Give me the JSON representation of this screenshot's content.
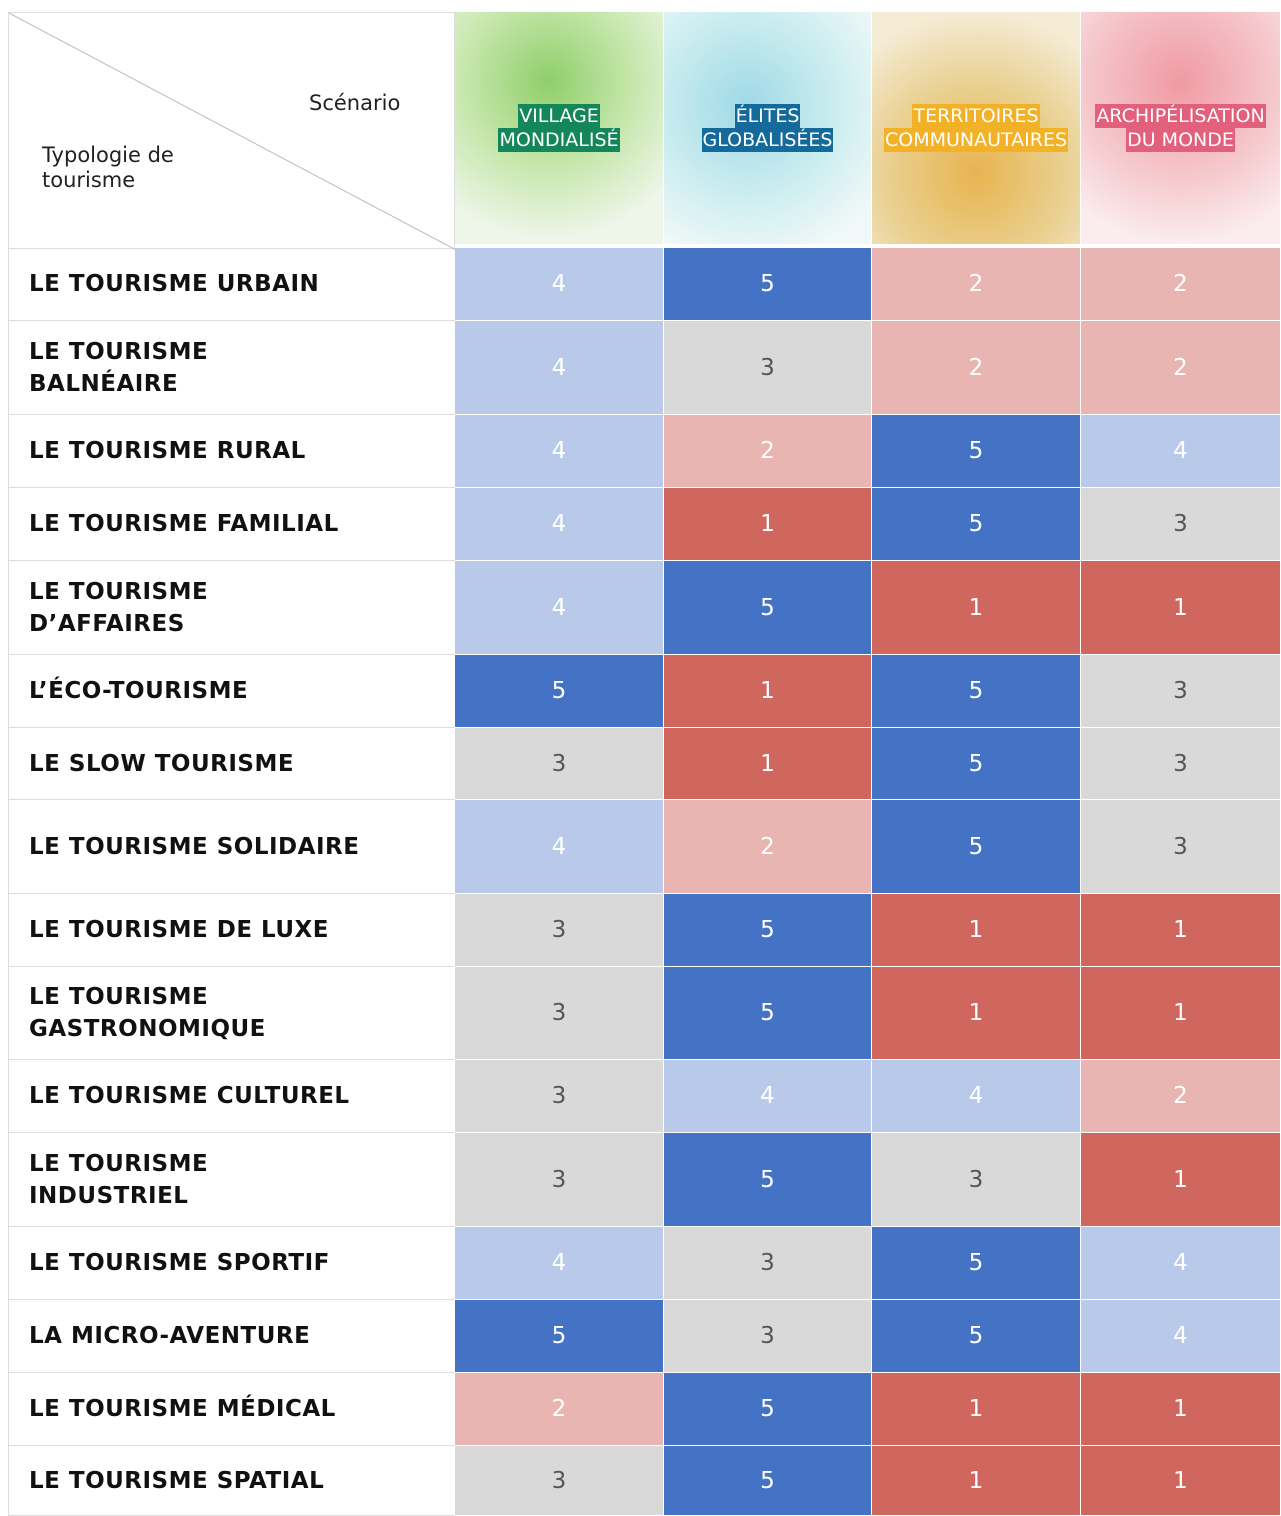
{
  "header": {
    "scenario_label": "Scénario",
    "typology_label": "Typologie de tourisme",
    "scenarios": [
      {
        "lines": [
          "VILLAGE",
          "MONDIALISÉ"
        ],
        "color": "#13865a"
      },
      {
        "lines": [
          "ÉLITES",
          "GLOBALISÉES"
        ],
        "color": "#156a9c"
      },
      {
        "lines": [
          "TERRITOIRES",
          "COMMUNAUTAIRES"
        ],
        "color": "#f2b127"
      },
      {
        "lines": [
          "ARCHIPÉLISATION",
          "DU MONDE"
        ],
        "color": "#e2607c"
      }
    ]
  },
  "score_colors": {
    "1": "#d0675f",
    "2": "#e8b5b3",
    "3": "#d9d9d9",
    "4": "#b9c9ea",
    "5": "#4472c4"
  },
  "table": {
    "rows": [
      {
        "label": "LE TOURISME URBAIN",
        "values": [
          4,
          5,
          2,
          2
        ]
      },
      {
        "label": "LE TOURISME BALNÉAIRE",
        "values": [
          4,
          3,
          2,
          2
        ]
      },
      {
        "label": "LE TOURISME RURAL",
        "values": [
          4,
          2,
          5,
          4
        ]
      },
      {
        "label": "LE TOURISME FAMILIAL",
        "values": [
          4,
          1,
          5,
          3
        ]
      },
      {
        "label": "LE TOURISME D’AFFAIRES",
        "values": [
          4,
          5,
          1,
          1
        ]
      },
      {
        "label": "L’ÉCO-TOURISME",
        "values": [
          5,
          1,
          5,
          3
        ]
      },
      {
        "label": "LE SLOW TOURISME",
        "values": [
          3,
          1,
          5,
          3
        ]
      },
      {
        "label": "LE TOURISME SOLIDAIRE",
        "values": [
          4,
          2,
          5,
          3
        ]
      },
      {
        "label": "LE TOURISME DE LUXE",
        "values": [
          3,
          5,
          1,
          1
        ]
      },
      {
        "label": "LE TOURISME GASTRONOMIQUE",
        "values": [
          3,
          5,
          1,
          1
        ]
      },
      {
        "label": "LE TOURISME CULTUREL",
        "values": [
          3,
          4,
          4,
          2
        ]
      },
      {
        "label": "LE TOURISME INDUSTRIEL",
        "values": [
          3,
          5,
          3,
          1
        ]
      },
      {
        "label": "LE TOURISME SPORTIF",
        "values": [
          4,
          3,
          5,
          4
        ]
      },
      {
        "label": "LA MICRO-AVENTURE",
        "values": [
          5,
          3,
          5,
          4
        ]
      },
      {
        "label": "LE TOURISME MÉDICAL",
        "values": [
          2,
          5,
          1,
          1
        ]
      },
      {
        "label": "LE TOURISME SPATIAL",
        "values": [
          3,
          5,
          1,
          1
        ]
      }
    ]
  }
}
